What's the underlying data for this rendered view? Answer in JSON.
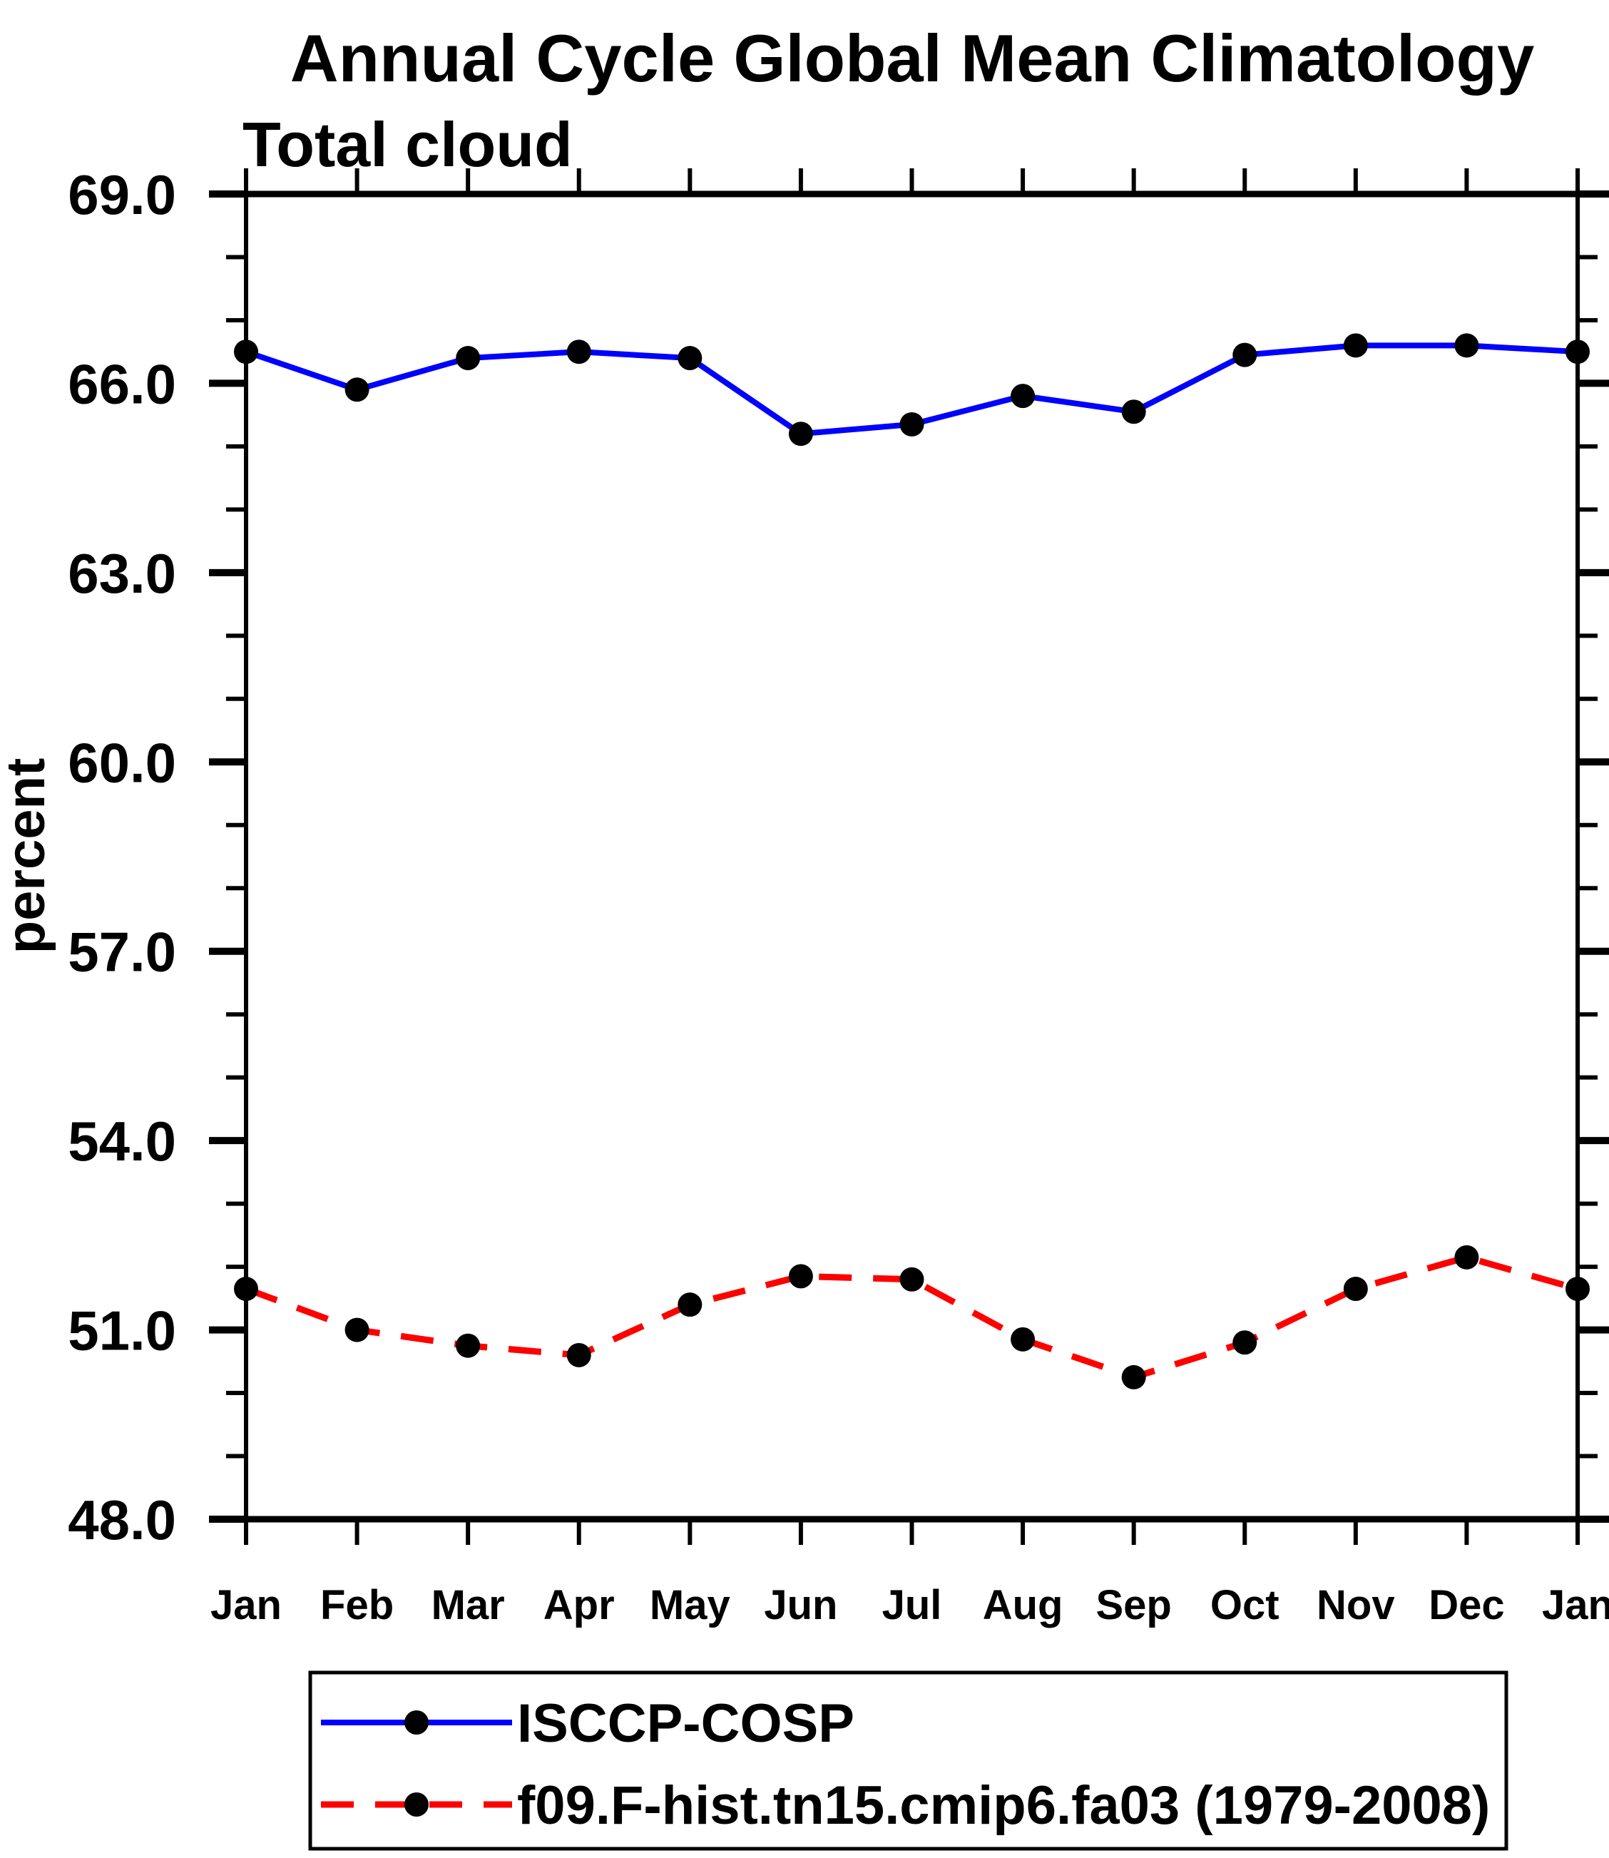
{
  "chart_data": {
    "type": "line",
    "title": "Annual Cycle Global Mean Climatology",
    "subtitle": "Total cloud",
    "ylabel": "percent",
    "ylim": [
      48.0,
      69.0
    ],
    "ytick_major_step": 3,
    "ytick_minor_step": 1,
    "ytick_label_format": "one-decimal",
    "grid": "off",
    "legend_position": "bottom",
    "x_categories": [
      "Jan",
      "Feb",
      "Mar",
      "Apr",
      "May",
      "Jun",
      "Jul",
      "Aug",
      "Sep",
      "Oct",
      "Nov",
      "Dec",
      "Jan"
    ],
    "series": [
      {
        "name": "ISCCP-COSP",
        "line_style": "solid",
        "line_color": "#0000ff",
        "marker": "filled-circle",
        "marker_color": "#000000",
        "values": [
          66.5,
          65.9,
          66.4,
          66.5,
          66.4,
          65.2,
          65.35,
          65.8,
          65.55,
          66.45,
          66.6,
          66.6,
          66.5
        ]
      },
      {
        "name": "f09.F-hist.tn15.cmip6.fa03 (1979-2008)",
        "line_style": "dashed",
        "line_color": "#ff0000",
        "marker": "filled-circle",
        "marker_color": "#000000",
        "values": [
          51.65,
          51.0,
          50.75,
          50.6,
          51.4,
          51.85,
          51.8,
          50.85,
          50.25,
          50.8,
          51.65,
          52.15,
          51.65
        ]
      }
    ]
  }
}
